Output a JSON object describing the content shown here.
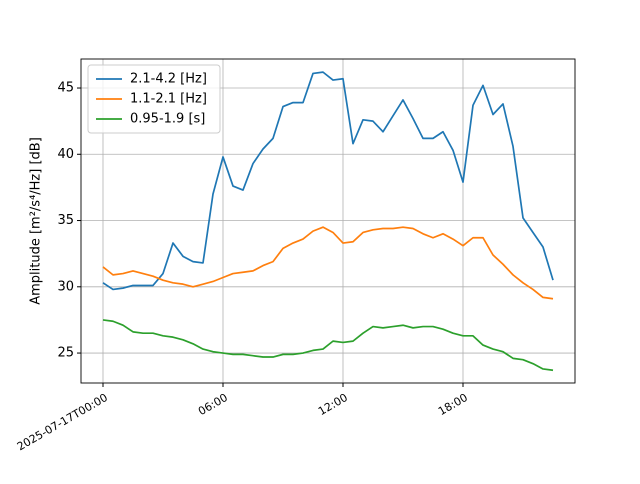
{
  "chart_data": {
    "type": "line",
    "x": [
      "2025-07-17T00:00",
      "2025-07-17T00:30",
      "2025-07-17T01:00",
      "2025-07-17T01:30",
      "2025-07-17T02:00",
      "2025-07-17T02:30",
      "2025-07-17T03:00",
      "2025-07-17T03:30",
      "2025-07-17T04:00",
      "2025-07-17T04:30",
      "2025-07-17T05:00",
      "2025-07-17T05:30",
      "2025-07-17T06:00",
      "2025-07-17T06:30",
      "2025-07-17T07:00",
      "2025-07-17T07:30",
      "2025-07-17T08:00",
      "2025-07-17T08:30",
      "2025-07-17T09:00",
      "2025-07-17T09:30",
      "2025-07-17T10:00",
      "2025-07-17T10:30",
      "2025-07-17T11:00",
      "2025-07-17T11:30",
      "2025-07-17T12:00",
      "2025-07-17T12:30",
      "2025-07-17T13:00",
      "2025-07-17T13:30",
      "2025-07-17T14:00",
      "2025-07-17T14:30",
      "2025-07-17T15:00",
      "2025-07-17T15:30",
      "2025-07-17T16:00",
      "2025-07-17T16:30",
      "2025-07-17T17:00",
      "2025-07-17T17:30",
      "2025-07-17T18:00",
      "2025-07-17T18:30",
      "2025-07-17T19:00",
      "2025-07-17T19:30",
      "2025-07-17T20:00",
      "2025-07-17T20:30",
      "2025-07-17T21:00",
      "2025-07-17T21:30",
      "2025-07-17T22:00",
      "2025-07-17T22:30"
    ],
    "series": [
      {
        "name": "2.1-4.2 [Hz]",
        "color": "#1f77b4",
        "values": [
          30.3,
          29.8,
          29.9,
          30.1,
          30.1,
          30.1,
          31.0,
          33.3,
          32.3,
          31.9,
          31.8,
          37.0,
          39.8,
          37.6,
          37.3,
          39.3,
          40.4,
          41.2,
          43.6,
          43.9,
          43.9,
          46.1,
          46.2,
          45.6,
          45.7,
          40.8,
          42.6,
          42.5,
          41.7,
          42.9,
          44.1,
          42.7,
          41.2,
          41.2,
          41.7,
          40.3,
          37.9,
          43.7,
          45.2,
          43.0,
          43.8,
          40.6,
          35.2,
          34.1,
          33.0,
          30.5
        ]
      },
      {
        "name": "1.1-2.1 [Hz]",
        "color": "#ff7f0e",
        "values": [
          31.5,
          30.9,
          31.0,
          31.2,
          31.0,
          30.8,
          30.5,
          30.3,
          30.2,
          30.0,
          30.2,
          30.4,
          30.7,
          31.0,
          31.1,
          31.2,
          31.6,
          31.9,
          32.9,
          33.3,
          33.6,
          34.2,
          34.5,
          34.1,
          33.3,
          33.4,
          34.1,
          34.3,
          34.4,
          34.4,
          34.5,
          34.4,
          34.0,
          33.7,
          34.0,
          33.6,
          33.1,
          33.7,
          33.7,
          32.4,
          31.7,
          30.9,
          30.3,
          29.8,
          29.2,
          29.1
        ]
      },
      {
        "name": "0.95-1.9 [s]",
        "color": "#2ca02c",
        "values": [
          27.5,
          27.4,
          27.1,
          26.6,
          26.5,
          26.5,
          26.3,
          26.2,
          26.0,
          25.7,
          25.3,
          25.1,
          25.0,
          24.9,
          24.9,
          24.8,
          24.7,
          24.7,
          24.9,
          24.9,
          25.0,
          25.2,
          25.3,
          25.9,
          25.8,
          25.9,
          26.5,
          27.0,
          26.9,
          27.0,
          27.1,
          26.9,
          27.0,
          27.0,
          26.8,
          26.5,
          26.3,
          26.3,
          25.6,
          25.3,
          25.1,
          24.6,
          24.5,
          24.2,
          23.8,
          23.7
        ]
      }
    ],
    "ylabel": "Amplitude [m²/s⁴/Hz] [dB]",
    "xlim": [
      "2025-07-16T22:54",
      "2025-07-17T23:36"
    ],
    "xticks": [
      "2025-07-17T00:00",
      {
        "value": "2025-07-17T06:00",
        "label": "06:00"
      },
      {
        "value": "2025-07-17T12:00",
        "label": "12:00"
      },
      {
        "value": "2025-07-17T18:00",
        "label": "18:00"
      }
    ],
    "ylim": [
      22.74,
      47.19
    ],
    "yticks": [
      25,
      30,
      35,
      40,
      45
    ],
    "grid": true,
    "legend": "upper left"
  }
}
